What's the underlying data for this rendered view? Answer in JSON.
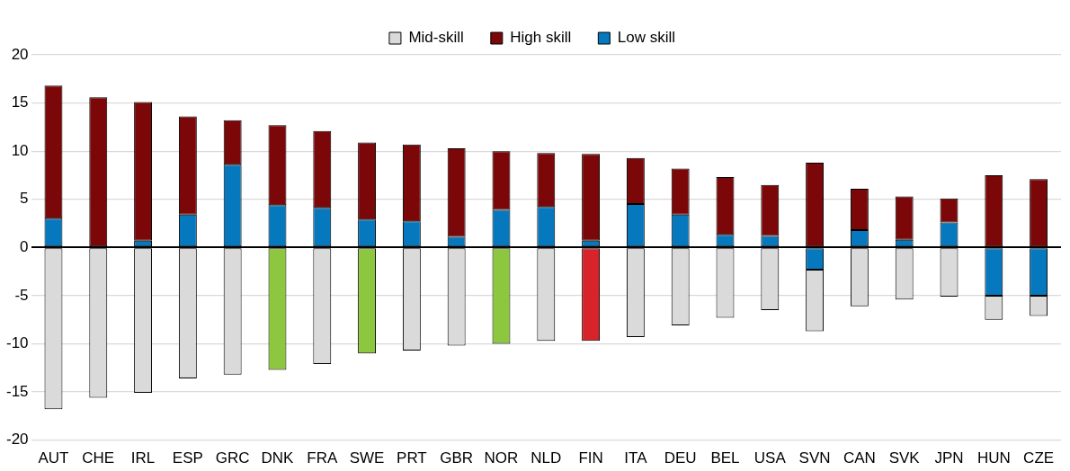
{
  "chart_data": {
    "type": "bar",
    "stacked": true,
    "categories": [
      "AUT",
      "CHE",
      "IRL",
      "ESP",
      "GRC",
      "DNK",
      "FRA",
      "SWE",
      "PRT",
      "GBR",
      "NOR",
      "NLD",
      "FIN",
      "ITA",
      "DEU",
      "BEL",
      "USA",
      "SVN",
      "CAN",
      "SVK",
      "JPN",
      "HUN",
      "CZE"
    ],
    "series": [
      {
        "name": "Low skill",
        "color": "#0678be",
        "values": [
          3.0,
          0,
          0.7,
          3.4,
          8.6,
          4.4,
          4.1,
          2.9,
          2.7,
          1.1,
          3.9,
          4.2,
          0.7,
          4.5,
          3.4,
          1.3,
          1.2,
          -2.3,
          1.8,
          0.8,
          2.6,
          -5.0,
          -5.0
        ]
      },
      {
        "name": "High skill",
        "color": "#7b0708",
        "values": [
          13.8,
          15.6,
          14.4,
          10.2,
          4.6,
          8.3,
          8.0,
          8.0,
          8.0,
          9.2,
          6.1,
          5.6,
          9.0,
          4.8,
          4.8,
          6.0,
          5.3,
          8.8,
          4.3,
          4.5,
          2.5,
          7.5,
          7.1
        ]
      },
      {
        "name": "Mid-skill",
        "color": "#dadada",
        "colors": [
          "#dadada",
          "#dadada",
          "#dadada",
          "#dadada",
          "#dadada",
          "#8dc63f",
          "#dadada",
          "#8dc63f",
          "#dadada",
          "#dadada",
          "#8dc63f",
          "#dadada",
          "#d9232a",
          "#dadada",
          "#dadada",
          "#dadada",
          "#dadada",
          "#dadada",
          "#dadada",
          "#dadada",
          "#dadada",
          "#dadada",
          "#dadada"
        ],
        "values": [
          -16.8,
          -15.6,
          -15.1,
          -13.6,
          -13.2,
          -12.7,
          -12.1,
          -11.0,
          -10.7,
          -10.2,
          -10.0,
          -9.7,
          -9.7,
          -9.3,
          -8.1,
          -7.3,
          -6.5,
          -6.4,
          -6.1,
          -5.4,
          -5.1,
          -2.5,
          -2.1
        ]
      }
    ],
    "ylim": [
      -20,
      20
    ],
    "yticks": [
      -20,
      -15,
      -10,
      -5,
      0,
      5,
      10,
      15,
      20
    ],
    "grid": "y",
    "legend": "top"
  }
}
